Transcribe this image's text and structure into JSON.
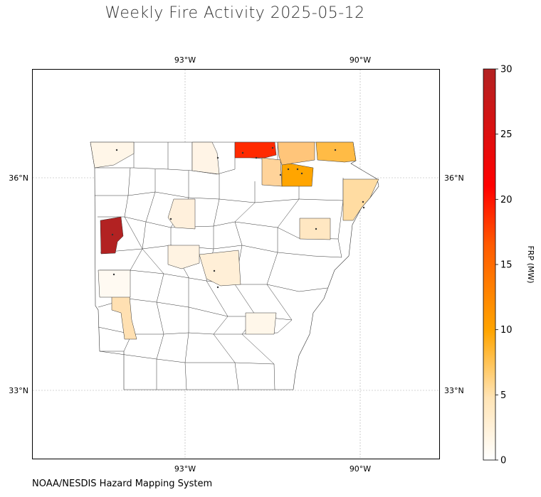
{
  "title": "Weekly Fire Activity 2025-05-12",
  "credit": "NOAA/NESDIS Hazard Mapping System",
  "axes": {
    "lon_ticks": [
      "93°W",
      "90°W"
    ],
    "lat_ticks": [
      "36°N",
      "33°N"
    ]
  },
  "colorbar": {
    "label": "FRP (MW)",
    "min": 0,
    "max": 30,
    "ticks": [
      "0",
      "5",
      "10",
      "15",
      "20",
      "25",
      "30"
    ],
    "colors": [
      "#ffffff",
      "#ffe4b5",
      "#ffa500",
      "#ff4500",
      "#ff0000",
      "#b22222"
    ]
  },
  "chart_data": {
    "type": "heatmap",
    "title": "Weekly Fire Activity 2025-05-12",
    "value_label": "FRP (MW)",
    "range": [
      0,
      30
    ],
    "highlighted_counties_frp": [
      30,
      22,
      8,
      7,
      6,
      4,
      3,
      2,
      2,
      2,
      1,
      1,
      1,
      1,
      1,
      0.5
    ]
  }
}
